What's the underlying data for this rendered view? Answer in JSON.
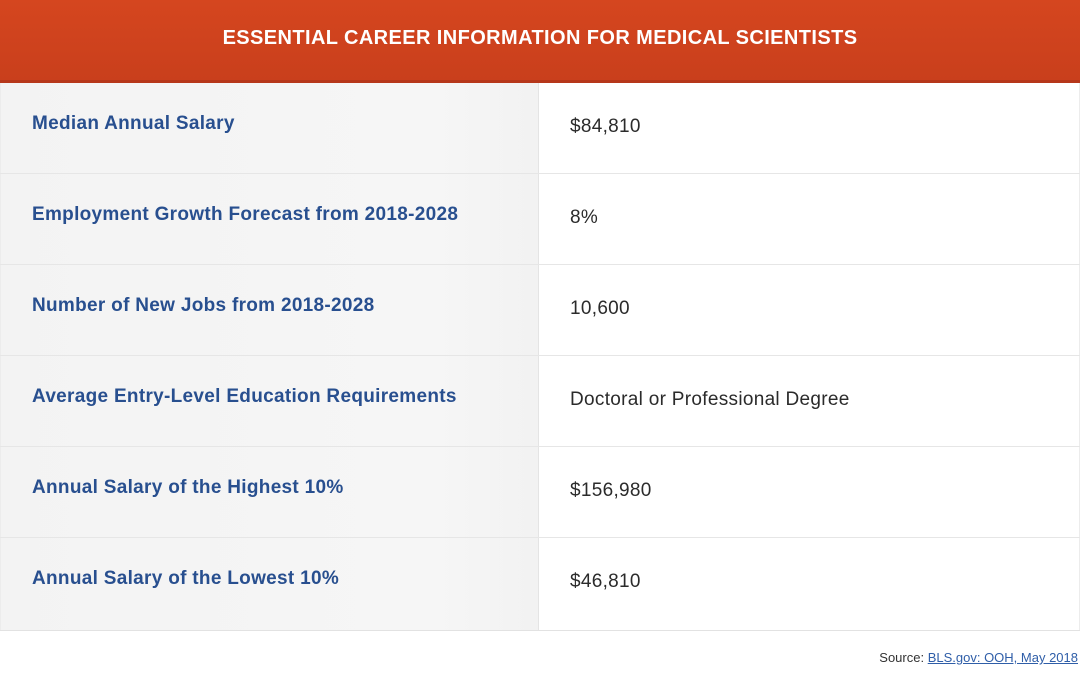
{
  "header": {
    "title": "ESSENTIAL CAREER INFORMATION FOR MEDICAL SCIENTISTS"
  },
  "rows": [
    {
      "label": "Median Annual Salary",
      "value": "$84,810"
    },
    {
      "label": "Employment Growth Forecast from 2018-2028",
      "value": "8%"
    },
    {
      "label": "Number of New Jobs from 2018-2028",
      "value": "10,600"
    },
    {
      "label": "Average Entry-Level Education Requirements",
      "value": "Doctoral or Professional Degree"
    },
    {
      "label": "Annual Salary of the Highest 10%",
      "value": "$156,980"
    },
    {
      "label": "Annual Salary of the Lowest 10%",
      "value": "$46,810"
    }
  ],
  "source": {
    "prefix": "Source: ",
    "link_text": "BLS.gov: OOH, May 2018"
  },
  "colors": {
    "header_bg": "#d5461f",
    "label_text": "#284f8f",
    "value_text": "#2b2b2b",
    "link": "#2f5ea8"
  }
}
